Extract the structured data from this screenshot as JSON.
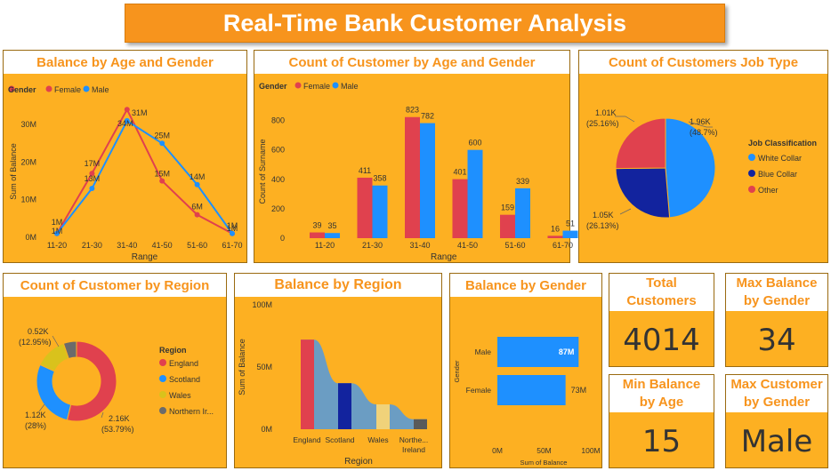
{
  "header": {
    "title": "Real-Time Bank Customer Analysis"
  },
  "colors": {
    "female": "#E0414E",
    "male": "#1E90FF",
    "white_collar": "#1E90FF",
    "blue_collar": "#12239E",
    "other": "#E0414E",
    "england": "#E0414E",
    "scotland": "#1E90FF",
    "wales": "#D9C21C",
    "northern_ireland": "#6B6B6B",
    "panel_bg": "#FDB022",
    "accent": "#F7941D"
  },
  "panels": {
    "balance_age_gender": "Balance by Age and Gender",
    "count_age_gender": "Count of Customer by Age and Gender",
    "job_type": "Count of Customers Job Type",
    "count_region": "Count of Customer by Region",
    "balance_region": "Balance by Region",
    "balance_gender": "Balance by Gender"
  },
  "cards": {
    "total_customers": {
      "label_line1": "Total",
      "label_line2": "Customers",
      "value": "4014"
    },
    "max_balance_gender": {
      "label_line1": "Max Balance",
      "label_line2": "by Gender",
      "value": "34"
    },
    "min_balance_age": {
      "label_line1": "Min Balance",
      "label_line2": "by Age",
      "value": "15"
    },
    "max_customer_gender": {
      "label_line1": "Max Customer",
      "label_line2": "by Gender",
      "value": "Male"
    }
  },
  "chart_data": [
    {
      "type": "line",
      "title": "Balance by Age and Gender",
      "xlabel": "Range",
      "ylabel": "Sum of Balance",
      "legend_title": "Gender",
      "categories": [
        "11-20",
        "21-30",
        "31-40",
        "41-50",
        "51-60",
        "61-70"
      ],
      "y_ticks": [
        "0M",
        "10M",
        "20M",
        "30M"
      ],
      "ylim": [
        0,
        35
      ],
      "series": [
        {
          "name": "Female",
          "values": [
            1,
            17,
            34,
            15,
            6,
            1
          ],
          "labels": [
            "1M",
            "17M",
            "",
            "15M",
            "6M",
            "1M"
          ]
        },
        {
          "name": "Male",
          "values": [
            1,
            13,
            31,
            25,
            14,
            1
          ],
          "labels": [
            "1M",
            "13M",
            "31M",
            "25M",
            "14M",
            "1M"
          ]
        }
      ],
      "extra_labels": [
        "34M"
      ]
    },
    {
      "type": "bar",
      "title": "Count of Customer by Age and Gender",
      "xlabel": "Range",
      "ylabel": "Count of Surname",
      "legend_title": "Gender",
      "categories": [
        "11-20",
        "21-30",
        "31-40",
        "41-50",
        "51-60",
        "61-70"
      ],
      "y_ticks": [
        "0",
        "200",
        "400",
        "600",
        "800"
      ],
      "ylim": [
        0,
        900
      ],
      "series": [
        {
          "name": "Female",
          "values": [
            39,
            411,
            823,
            401,
            159,
            16
          ]
        },
        {
          "name": "Male",
          "values": [
            35,
            358,
            782,
            600,
            339,
            51
          ]
        }
      ]
    },
    {
      "type": "pie",
      "title": "Count of Customers Job Type",
      "legend_title": "Job Classification",
      "slices": [
        {
          "name": "White Collar",
          "value": 1960,
          "label": "1.96K",
          "pct": "(48.7%)",
          "share": 48.7
        },
        {
          "name": "Blue Collar",
          "value": 1050,
          "label": "1.05K",
          "pct": "(26.13%)",
          "share": 26.13
        },
        {
          "name": "Other",
          "value": 1010,
          "label": "1.01K",
          "pct": "(25.16%)",
          "share": 25.16
        }
      ]
    },
    {
      "type": "pie",
      "title": "Count of Customer by Region",
      "legend_title": "Region",
      "slices": [
        {
          "name": "England",
          "value": 2160,
          "label": "2.16K",
          "pct": "(53.79%)",
          "share": 53.79
        },
        {
          "name": "Scotland",
          "value": 1120,
          "label": "1.12K",
          "pct": "(28%)",
          "share": 28.0
        },
        {
          "name": "Wales",
          "value": 520,
          "label": "0.52K",
          "pct": "(12.95%)",
          "share": 12.95
        },
        {
          "name": "Northern Ir...",
          "value": 210,
          "label": "",
          "pct": "",
          "share": 5.26
        }
      ]
    },
    {
      "type": "area",
      "title": "Balance by Region",
      "xlabel": "Region",
      "ylabel": "Sum of Balance",
      "categories": [
        "England",
        "Scotland",
        "Wales",
        "Northe... Ireland"
      ],
      "y_ticks": [
        "0M",
        "50M",
        "100M"
      ],
      "ylim": [
        0,
        100
      ],
      "values": [
        72,
        37,
        20,
        8
      ]
    },
    {
      "type": "bar",
      "title": "Balance by Gender",
      "xlabel": "Sum of Balance",
      "ylabel": "Gender",
      "categories": [
        "Male",
        "Female"
      ],
      "values": [
        87,
        73
      ],
      "labels": [
        "87M",
        "73M"
      ],
      "x_ticks": [
        "0M",
        "50M",
        "100M"
      ],
      "xlim": [
        0,
        100
      ]
    }
  ],
  "axis_labels": {
    "line_x_title": "Range",
    "line_y_title": "Sum of Balance",
    "bar_x_title": "Range",
    "bar_y_title": "Count of Surname",
    "region_x_title": "Region",
    "region_y_title": "Sum of Balance",
    "gender_x_title": "Sum of Balance",
    "gender_y_title": "Gender",
    "region_cat_last_1": "Northe...",
    "region_cat_last_2": "Ireland"
  },
  "legends": {
    "gender": "Gender",
    "female": "Female",
    "male": "Male",
    "job": "Job Classification",
    "white_collar": "White Collar",
    "blue_collar": "Blue Collar",
    "other": "Other",
    "region": "Region",
    "england": "England",
    "scotland": "Scotland",
    "wales": "Wales",
    "northern_ireland": "Northern Ir..."
  }
}
